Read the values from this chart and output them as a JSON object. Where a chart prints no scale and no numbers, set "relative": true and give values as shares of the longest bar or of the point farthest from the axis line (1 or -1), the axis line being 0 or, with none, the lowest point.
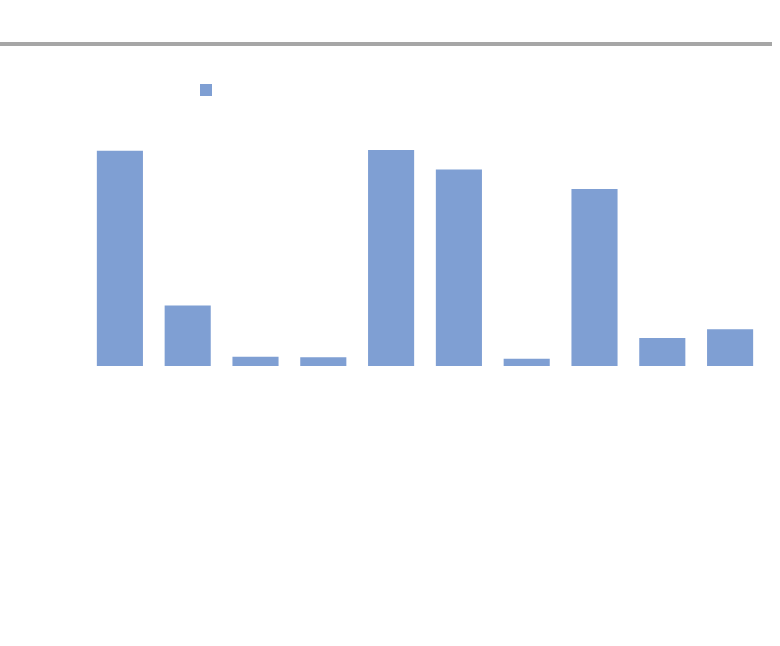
{
  "chart_data": {
    "type": "bar",
    "relative": true,
    "categories": [
      null,
      null,
      null,
      null,
      null,
      null,
      null,
      null,
      null,
      null
    ],
    "values": [
      0.997,
      0.28,
      0.043,
      0.04,
      1,
      0.91,
      0.034,
      0.82,
      0.13,
      0.17
    ],
    "color": "#7f9fd3",
    "legend": false
  }
}
